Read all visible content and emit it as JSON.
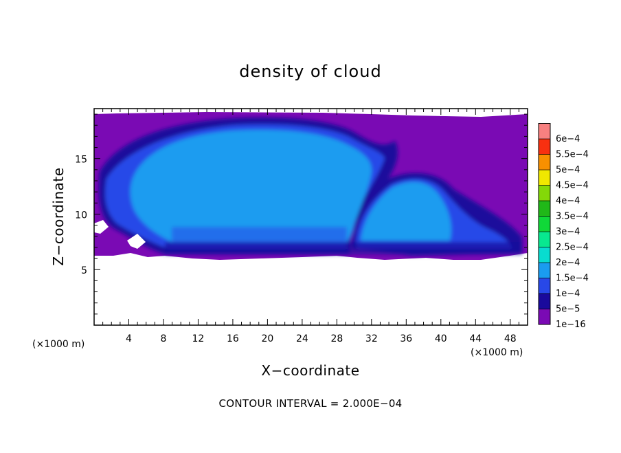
{
  "chart_data": {
    "type": "heatmap",
    "title": "density of cloud",
    "xlabel": "X−coordinate",
    "ylabel": "Z−coordinate",
    "x_unit": "(×1000 m)",
    "y_unit": "(×1000 m)",
    "xlim": [
      0,
      50
    ],
    "ylim": [
      0,
      19.5
    ],
    "x_ticks": [
      "4",
      "8",
      "12",
      "16",
      "20",
      "24",
      "28",
      "32",
      "36",
      "40",
      "44",
      "48"
    ],
    "x_tick_values": [
      4,
      8,
      12,
      16,
      20,
      24,
      28,
      32,
      36,
      40,
      44,
      48
    ],
    "y_ticks": [
      "5",
      "10",
      "15"
    ],
    "y_tick_values": [
      5,
      10,
      15
    ],
    "colorbar": {
      "labels": [
        "1e−16",
        "5e−5",
        "1e−4",
        "1.5e−4",
        "2e−4",
        "2.5e−4",
        "3e−4",
        "3.5e−4",
        "4e−4",
        "4.5e−4",
        "5e−4",
        "5.5e−4",
        "6e−4"
      ],
      "colors": [
        "#7a0ab4",
        "#1a0a9c",
        "#2848e8",
        "#1a9cf0",
        "#08dcd0",
        "#08e890",
        "#10d838",
        "#20b818",
        "#84d808",
        "#f0e800",
        "#f89000",
        "#f83010",
        "#f88080"
      ]
    },
    "footer": "CONTOUR INTERVAL = 2.000E−04"
  }
}
